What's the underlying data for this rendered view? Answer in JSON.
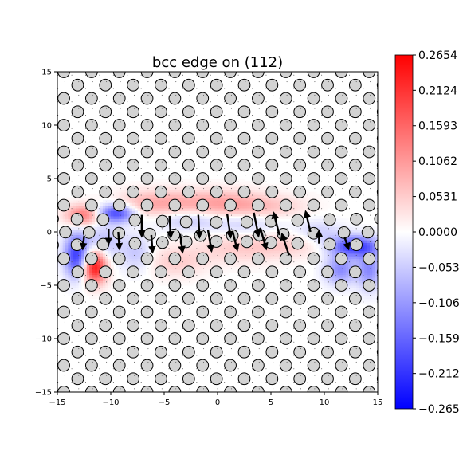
{
  "chart_data": {
    "type": "heatmap",
    "title": "bcc edge on (112)",
    "xlabel": "",
    "ylabel": "",
    "xlim": [
      -15,
      15
    ],
    "ylim": [
      -15,
      15
    ],
    "xticks": [
      -15,
      -10,
      -5,
      0,
      5,
      10,
      15
    ],
    "yticks": [
      -15,
      -10,
      -5,
      0,
      5,
      10,
      15
    ],
    "xtick_labels": [
      "−15",
      "−10",
      "−5",
      "0",
      "5",
      "10",
      "15"
    ],
    "ytick_labels": [
      "−15",
      "−10",
      "−5",
      "0",
      "5",
      "10",
      "15"
    ],
    "colormap": "bwr",
    "colorbar": {
      "min": -0.2654,
      "max": 0.2654,
      "ticks": [
        0.2654,
        0.2124,
        0.1593,
        0.1062,
        0.0531,
        0.0,
        -0.0531,
        -0.1062,
        -0.1593,
        -0.2124,
        -0.2654
      ],
      "tick_labels": [
        "0.2654",
        "0.2124",
        "0.1593",
        "0.1062",
        "0.0531",
        "0.0000",
        "−0.0531",
        "−0.1062",
        "−0.1593",
        "−0.2124",
        "−0.2654"
      ]
    },
    "colors": {
      "positive": "#ff0000",
      "negative": "#0000ff",
      "zero": "#ffffff",
      "atom_fill": "#d3d3d3",
      "atom_edge": "#000000"
    },
    "lattice": {
      "a_x": 2.6,
      "a_y": 1.25,
      "row_shift": 1.3,
      "radius": 0.55
    },
    "field_blobs": [
      {
        "x": -11.5,
        "y": -3.2,
        "sx": 0.8,
        "sy": 1.1,
        "v": 0.26
      },
      {
        "x": -12.5,
        "y": 1.6,
        "sx": 1.2,
        "sy": 0.7,
        "v": 0.15
      },
      {
        "x": -9.5,
        "y": 1.8,
        "sx": 1.3,
        "sy": 0.6,
        "v": -0.2
      },
      {
        "x": -13.2,
        "y": -2.2,
        "sx": 0.8,
        "sy": 1.4,
        "v": -0.2
      },
      {
        "x": -10.8,
        "y": -1.0,
        "sx": 1.4,
        "sy": 1.4,
        "v": -0.07
      },
      {
        "x": -7.5,
        "y": -2.0,
        "sx": 1.0,
        "sy": 1.2,
        "v": -0.06
      },
      {
        "x": -7.5,
        "y": 2.6,
        "sx": 1.8,
        "sy": 0.9,
        "v": 0.05
      },
      {
        "x": -4.5,
        "y": 2.7,
        "sx": 2.2,
        "sy": 0.9,
        "v": 0.07
      },
      {
        "x": 0.5,
        "y": 2.7,
        "sx": 2.6,
        "sy": 0.9,
        "v": 0.09
      },
      {
        "x": 5.0,
        "y": 2.4,
        "sx": 2.5,
        "sy": 0.8,
        "v": 0.05
      },
      {
        "x": -3.0,
        "y": 1.2,
        "sx": 2.0,
        "sy": 0.7,
        "v": -0.06
      },
      {
        "x": 2.5,
        "y": 0.8,
        "sx": 2.5,
        "sy": 0.7,
        "v": -0.05
      },
      {
        "x": -4.0,
        "y": -2.8,
        "sx": 2.0,
        "sy": 1.0,
        "v": 0.05
      },
      {
        "x": 2.0,
        "y": -1.5,
        "sx": 3.0,
        "sy": 1.0,
        "v": 0.05
      },
      {
        "x": 7.0,
        "y": -1.2,
        "sx": 2.5,
        "sy": 0.8,
        "v": 0.04
      },
      {
        "x": 12.8,
        "y": -1.3,
        "sx": 1.6,
        "sy": 0.7,
        "v": -0.2
      },
      {
        "x": 11.5,
        "y": -3.5,
        "sx": 1.0,
        "sy": 1.0,
        "v": -0.12
      },
      {
        "x": 14.2,
        "y": -3.5,
        "sx": 0.8,
        "sy": 1.3,
        "v": -0.12
      },
      {
        "x": 9.5,
        "y": 0.0,
        "sx": 1.5,
        "sy": 0.8,
        "v": -0.05
      }
    ],
    "displacement_arrows": [
      {
        "x": -12.5,
        "y": -0.4,
        "dx": -0.1,
        "dy": -1.0
      },
      {
        "x": -10.2,
        "y": 0.3,
        "dx": 0.0,
        "dy": -1.2
      },
      {
        "x": -9.3,
        "y": 0.0,
        "dx": 0.1,
        "dy": -1.4
      },
      {
        "x": -7.1,
        "y": 1.6,
        "dx": 0.0,
        "dy": -1.8
      },
      {
        "x": -6.2,
        "y": -0.3,
        "dx": 0.1,
        "dy": -1.4
      },
      {
        "x": -4.5,
        "y": 1.5,
        "dx": 0.1,
        "dy": -1.8
      },
      {
        "x": -3.5,
        "y": -0.2,
        "dx": 0.2,
        "dy": -1.5
      },
      {
        "x": -1.8,
        "y": 1.6,
        "dx": 0.1,
        "dy": -1.9
      },
      {
        "x": -0.9,
        "y": 0.2,
        "dx": 0.3,
        "dy": -1.8
      },
      {
        "x": 0.9,
        "y": 1.7,
        "dx": 0.3,
        "dy": -2.0
      },
      {
        "x": 1.4,
        "y": 0.1,
        "dx": 0.4,
        "dy": -1.6
      },
      {
        "x": 3.4,
        "y": 1.8,
        "dx": 0.4,
        "dy": -2.0
      },
      {
        "x": 4.0,
        "y": 0.4,
        "dx": 0.5,
        "dy": -1.8
      },
      {
        "x": 6.7,
        "y": -2.2,
        "dx": -0.6,
        "dy": 1.8
      },
      {
        "x": 5.8,
        "y": -0.3,
        "dx": -0.5,
        "dy": 1.9
      },
      {
        "x": 8.7,
        "y": 0.0,
        "dx": -0.4,
        "dy": 1.7
      },
      {
        "x": 9.5,
        "y": -1.1,
        "dx": 0.0,
        "dy": 1.0
      },
      {
        "x": 11.9,
        "y": -0.5,
        "dx": 0.3,
        "dy": -0.9
      }
    ]
  }
}
